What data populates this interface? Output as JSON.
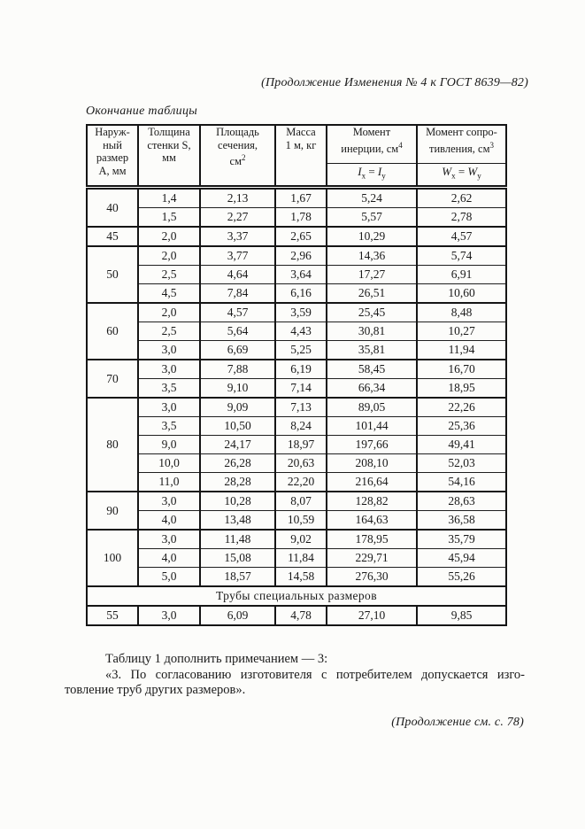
{
  "page": {
    "header_note": "(Продолжение Изменения № 4 к ГОСТ 8639—82)",
    "table_caption": "Окончание таблицы",
    "continuation_note": "(Продолжение см. с. 78)"
  },
  "notes": {
    "line1": "Таблицу 1 дополнить примечанием — 3:",
    "line2": "«3. По согласованию изготовителя с потребителем допускается изго-",
    "line3": "товление труб других размеров»."
  },
  "table": {
    "headers": {
      "outer_size": "Наруж-<br>ный<br>размер<br>А, мм",
      "wall_thickness": "Толщина<br>стенки S,<br>мм",
      "section_area": "Площадь<br>сечения,<br>см<sup>2</sup>",
      "mass": "Масса<br>1 м, кг",
      "inertia_title": "Момент<br>инерции, см<sup>4</sup>",
      "inertia_sub": "<i>I</i><sub>x</sub> = <i>I</i><sub>y</sub>",
      "resistance_title": "Момент сопро-<br>тивления, см<sup>3</sup>",
      "resistance_sub": "<i>W</i><sub>x</sub> = <i>W</i><sub>y</sub>"
    },
    "groups": [
      {
        "size": "40",
        "rows": [
          [
            "1,4",
            "2,13",
            "1,67",
            "5,24",
            "2,62"
          ],
          [
            "1,5",
            "2,27",
            "1,78",
            "5,57",
            "2,78"
          ]
        ]
      },
      {
        "size": "45",
        "rows": [
          [
            "2,0",
            "3,37",
            "2,65",
            "10,29",
            "4,57"
          ]
        ]
      },
      {
        "size": "50",
        "rows": [
          [
            "2,0",
            "3,77",
            "2,96",
            "14,36",
            "5,74"
          ],
          [
            "2,5",
            "4,64",
            "3,64",
            "17,27",
            "6,91"
          ],
          [
            "4,5",
            "7,84",
            "6,16",
            "26,51",
            "10,60"
          ]
        ]
      },
      {
        "size": "60",
        "rows": [
          [
            "2,0",
            "4,57",
            "3,59",
            "25,45",
            "8,48"
          ],
          [
            "2,5",
            "5,64",
            "4,43",
            "30,81",
            "10,27"
          ],
          [
            "3,0",
            "6,69",
            "5,25",
            "35,81",
            "11,94"
          ]
        ]
      },
      {
        "size": "70",
        "rows": [
          [
            "3,0",
            "7,88",
            "6,19",
            "58,45",
            "16,70"
          ],
          [
            "3,5",
            "9,10",
            "7,14",
            "66,34",
            "18,95"
          ]
        ]
      },
      {
        "size": "80",
        "rows": [
          [
            "3,0",
            "9,09",
            "7,13",
            "89,05",
            "22,26"
          ],
          [
            "3,5",
            "10,50",
            "8,24",
            "101,44",
            "25,36"
          ],
          [
            "9,0",
            "24,17",
            "18,97",
            "197,66",
            "49,41"
          ],
          [
            "10,0",
            "26,28",
            "20,63",
            "208,10",
            "52,03"
          ],
          [
            "11,0",
            "28,28",
            "22,20",
            "216,64",
            "54,16"
          ]
        ]
      },
      {
        "size": "90",
        "rows": [
          [
            "3,0",
            "10,28",
            "8,07",
            "128,82",
            "28,63"
          ],
          [
            "4,0",
            "13,48",
            "10,59",
            "164,63",
            "36,58"
          ]
        ]
      },
      {
        "size": "100",
        "rows": [
          [
            "3,0",
            "11,48",
            "9,02",
            "178,95",
            "35,79"
          ],
          [
            "4,0",
            "15,08",
            "11,84",
            "229,71",
            "45,94"
          ],
          [
            "5,0",
            "18,57",
            "14,58",
            "276,30",
            "55,26"
          ]
        ]
      }
    ],
    "special_section": {
      "title": "Трубы специальных размеров",
      "groups": [
        {
          "size": "55",
          "rows": [
            [
              "3,0",
              "6,09",
              "4,78",
              "27,10",
              "9,85"
            ]
          ]
        }
      ]
    }
  }
}
